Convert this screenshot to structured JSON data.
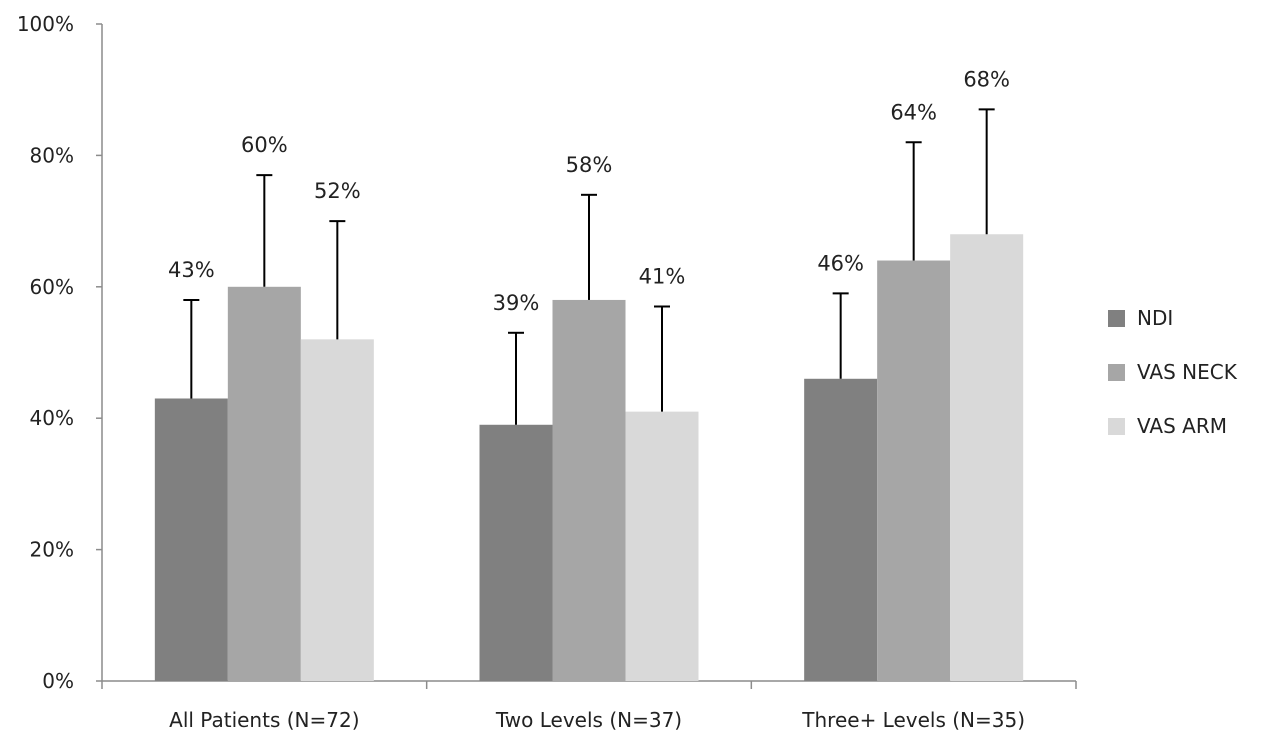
{
  "chart_data": {
    "type": "bar",
    "title": "",
    "xlabel": "",
    "ylabel": "",
    "categories": [
      "All Patients (N=72)",
      "Two Levels (N=37)",
      "Three+ Levels (N=35)"
    ],
    "series": [
      {
        "name": "NDI",
        "color": "#808080",
        "values": [
          43,
          39,
          46
        ],
        "error_upper": [
          58,
          53,
          59
        ],
        "labels": [
          "43%",
          "39%",
          "46%"
        ]
      },
      {
        "name": "VAS NECK",
        "color": "#a6a6a6",
        "values": [
          60,
          58,
          64
        ],
        "error_upper": [
          77,
          74,
          82
        ],
        "labels": [
          "60%",
          "58%",
          "64%"
        ]
      },
      {
        "name": "VAS ARM",
        "color": "#d9d9d9",
        "values": [
          52,
          41,
          68
        ],
        "error_upper": [
          70,
          57,
          87
        ],
        "labels": [
          "52%",
          "41%",
          "68%"
        ]
      }
    ],
    "ylim": [
      0,
      100
    ],
    "y_ticks": [
      "0%",
      "20%",
      "40%",
      "60%",
      "80%",
      "100%"
    ],
    "y_tick_values": [
      0,
      20,
      40,
      60,
      80,
      100
    ],
    "grid": false,
    "legend": "right"
  }
}
